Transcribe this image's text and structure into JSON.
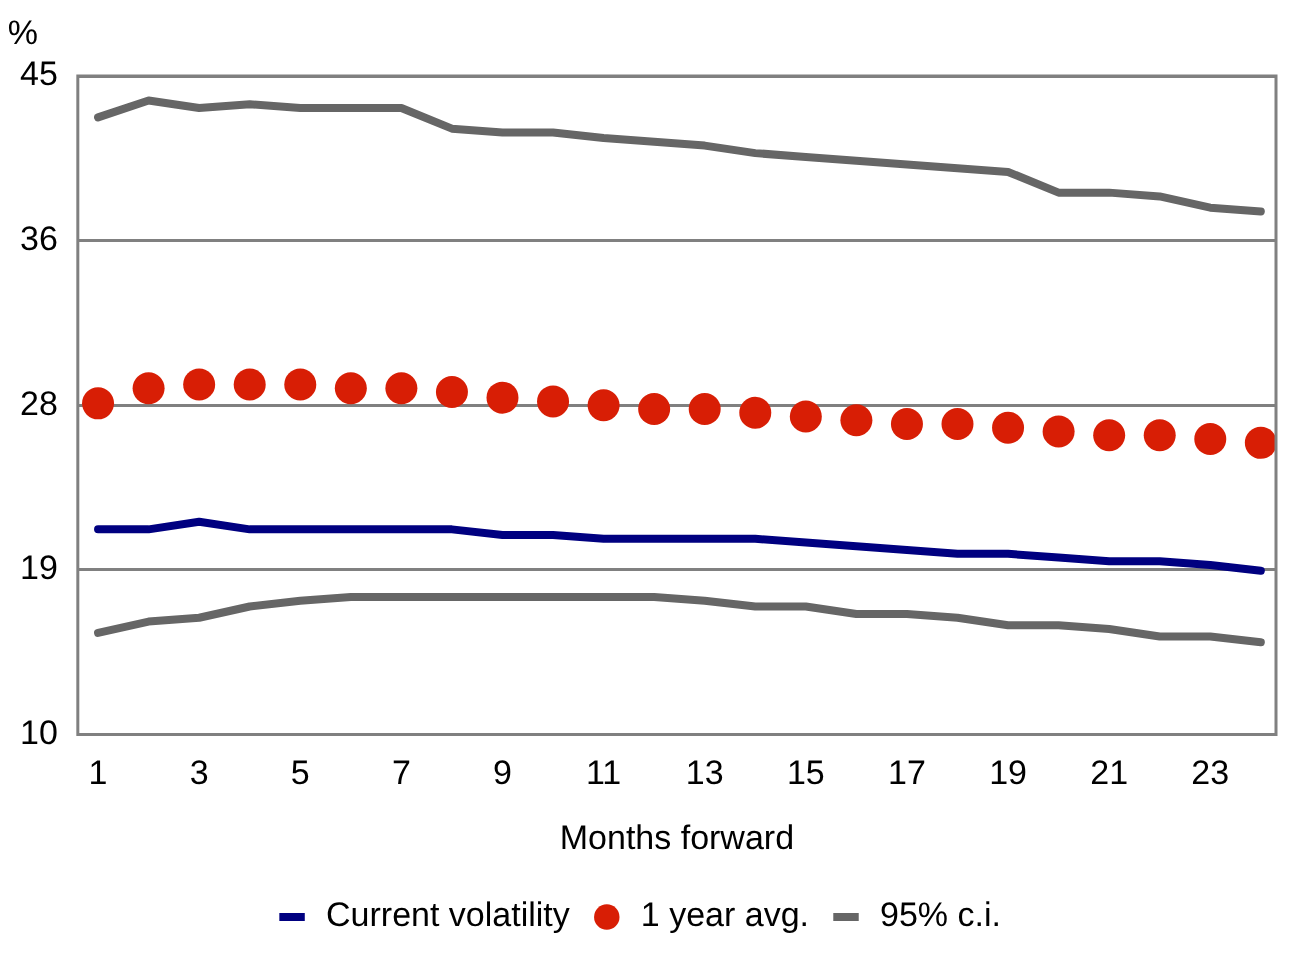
{
  "chart_data": {
    "type": "line",
    "xlabel": "Months forward",
    "ylabel": "%",
    "x": [
      1,
      2,
      3,
      4,
      5,
      6,
      7,
      8,
      9,
      10,
      11,
      12,
      13,
      14,
      15,
      16,
      17,
      18,
      19,
      20,
      21,
      22,
      23,
      24
    ],
    "xlim": [
      0.6,
      24.3
    ],
    "xticks": [
      1,
      3,
      5,
      7,
      9,
      11,
      13,
      15,
      17,
      19,
      21,
      23
    ],
    "series": [
      {
        "name": "Current volatility",
        "color": "#000080",
        "marker": "none",
        "values": [
          20.9,
          20.9,
          21.3,
          20.9,
          20.9,
          20.9,
          20.9,
          20.9,
          20.6,
          20.6,
          20.4,
          20.4,
          20.4,
          20.4,
          20.2,
          20.0,
          19.8,
          19.6,
          19.6,
          19.4,
          19.2,
          19.2,
          19.0,
          18.7
        ]
      },
      {
        "name": "1 year avg.",
        "type": "scatter",
        "color": "#d81e05",
        "marker": "circle",
        "values": [
          27.6,
          28.4,
          28.6,
          28.6,
          28.6,
          28.4,
          28.4,
          28.2,
          27.9,
          27.7,
          27.5,
          27.3,
          27.3,
          27.1,
          26.9,
          26.7,
          26.5,
          26.5,
          26.3,
          26.1,
          25.9,
          25.9,
          25.7,
          25.5
        ]
      },
      {
        "name": "95% c.i.",
        "color": "#666666",
        "marker": "none",
        "values": [
          42.8,
          43.7,
          43.3,
          43.5,
          43.3,
          43.3,
          43.3,
          42.2,
          42.0,
          42.0,
          41.7,
          41.5,
          41.3,
          40.9,
          40.7,
          40.5,
          40.3,
          40.1,
          39.9,
          38.8,
          38.8,
          38.6,
          38.0,
          37.8
        ]
      },
      {
        "color": "#666666",
        "marker": "none",
        "values": [
          15.4,
          16.0,
          16.2,
          16.8,
          17.1,
          17.3,
          17.3,
          17.3,
          17.3,
          17.3,
          17.3,
          17.3,
          17.1,
          16.8,
          16.8,
          16.4,
          16.4,
          16.2,
          15.8,
          15.8,
          15.6,
          15.2,
          15.2,
          14.9
        ]
      }
    ],
    "ylim": [
      10,
      45
    ],
    "yticks": [
      10,
      {
        "value": 18.75,
        "label": "19"
      },
      {
        "value": 27.5,
        "label": "28"
      },
      {
        "value": 36.25,
        "label": "36"
      },
      45
    ],
    "grid": "y",
    "legend": "bottom"
  }
}
